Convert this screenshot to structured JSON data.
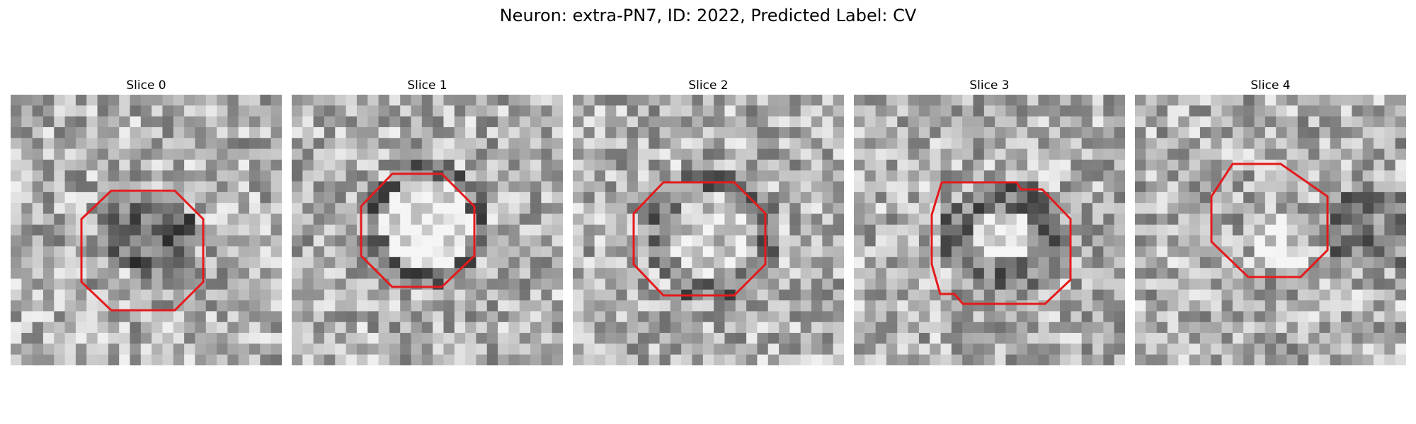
{
  "title": "Neuron: extra-PN7, ID: 2022, Predicted Label: CV",
  "overlay_color": "#e41a1c",
  "slices": [
    {
      "title": "Slice 0"
    },
    {
      "title": "Slice 1"
    },
    {
      "title": "Slice 2"
    },
    {
      "title": "Slice 3"
    },
    {
      "title": "Slice 4"
    }
  ]
}
